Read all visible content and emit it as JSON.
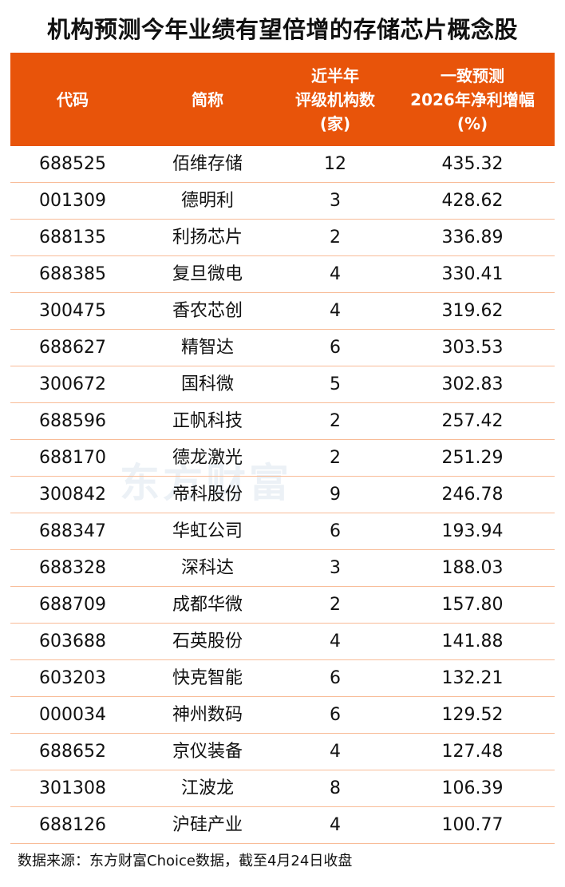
{
  "title": "机构预测今年业绩有望倍增的存储芯片概念股",
  "colors": {
    "header_bg": "#e8540a",
    "row_divider": "#f8bc98"
  },
  "watermark": "东方财富",
  "headers": [
    {
      "lines": [
        "代码"
      ]
    },
    {
      "lines": [
        "简称"
      ]
    },
    {
      "lines": [
        "近半年",
        "评级机构数",
        "(家)"
      ]
    },
    {
      "lines": [
        "一致预测",
        "2026年净利增幅",
        "(%)"
      ]
    }
  ],
  "rows": [
    [
      "688525",
      "佰维存储",
      "12",
      "435.32"
    ],
    [
      "001309",
      "德明利",
      "3",
      "428.62"
    ],
    [
      "688135",
      "利扬芯片",
      "2",
      "336.89"
    ],
    [
      "688385",
      "复旦微电",
      "4",
      "330.41"
    ],
    [
      "300475",
      "香农芯创",
      "4",
      "319.62"
    ],
    [
      "688627",
      "精智达",
      "6",
      "303.53"
    ],
    [
      "300672",
      "国科微",
      "5",
      "302.83"
    ],
    [
      "688596",
      "正帆科技",
      "2",
      "257.42"
    ],
    [
      "688170",
      "德龙激光",
      "2",
      "251.29"
    ],
    [
      "300842",
      "帝科股份",
      "9",
      "246.78"
    ],
    [
      "688347",
      "华虹公司",
      "6",
      "193.94"
    ],
    [
      "688328",
      "深科达",
      "3",
      "188.03"
    ],
    [
      "688709",
      "成都华微",
      "2",
      "157.80"
    ],
    [
      "603688",
      "石英股份",
      "4",
      "141.88"
    ],
    [
      "603203",
      "快克智能",
      "6",
      "132.21"
    ],
    [
      "000034",
      "神州数码",
      "6",
      "129.52"
    ],
    [
      "688652",
      "京仪装备",
      "4",
      "127.48"
    ],
    [
      "301308",
      "江波龙",
      "8",
      "106.39"
    ],
    [
      "688126",
      "沪硅产业",
      "4",
      "100.77"
    ]
  ],
  "footer": "数据来源：东方财富Choice数据，截至4月24日收盘"
}
